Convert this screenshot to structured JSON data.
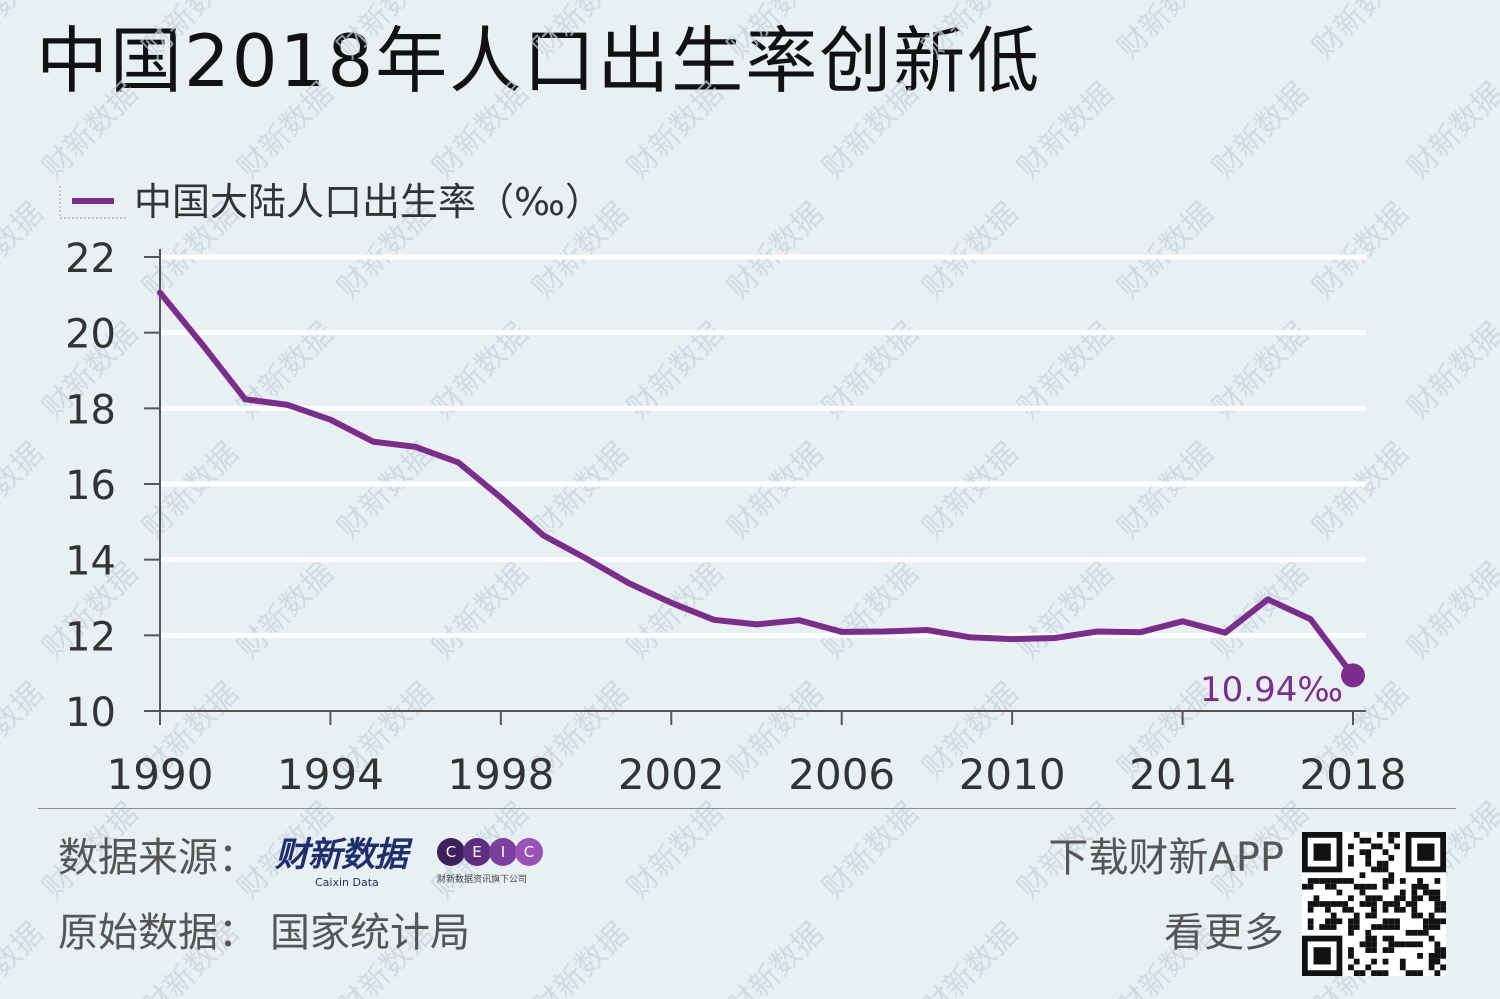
{
  "title": "中国2018年人口出生率创新低",
  "legend": {
    "label": "中国大陆人口出生率（‰）",
    "color": "#7b2d8b"
  },
  "colors": {
    "background": "#e8f0f4",
    "gridline": "#ffffff",
    "series": "#7b2d8b",
    "axis": "#555555",
    "watermark": "#c5d3dc"
  },
  "watermark": "财新数据",
  "chart_data": {
    "type": "line",
    "title": "中国2018年人口出生率创新低",
    "xlabel": "",
    "ylabel": "",
    "xlim": [
      1990,
      2018
    ],
    "ylim": [
      10,
      22
    ],
    "yticks": [
      10,
      12,
      14,
      16,
      18,
      20,
      22
    ],
    "xticks": [
      1990,
      1994,
      1998,
      2002,
      2006,
      2010,
      2014,
      2018
    ],
    "grid": "horizontal",
    "legend_position": "top-left",
    "series": [
      {
        "name": "中国大陆人口出生率（‰）",
        "x": [
          1990,
          1991,
          1992,
          1993,
          1994,
          1995,
          1996,
          1997,
          1998,
          1999,
          2000,
          2001,
          2002,
          2003,
          2004,
          2005,
          2006,
          2007,
          2008,
          2009,
          2010,
          2011,
          2012,
          2013,
          2014,
          2015,
          2016,
          2017,
          2018
        ],
        "values": [
          21.06,
          19.68,
          18.24,
          18.09,
          17.7,
          17.12,
          16.98,
          16.57,
          15.64,
          14.64,
          14.03,
          13.38,
          12.86,
          12.41,
          12.29,
          12.4,
          12.09,
          12.1,
          12.14,
          11.95,
          11.9,
          11.93,
          12.1,
          12.08,
          12.37,
          12.07,
          12.95,
          12.43,
          10.94
        ]
      }
    ],
    "annotations": [
      {
        "x": 2018,
        "y": 10.94,
        "text": "10.94‰"
      }
    ]
  },
  "footer": {
    "source_label": "数据来源：",
    "caixin_logo_cn": "财新数据",
    "caixin_logo_en": "Caixin Data",
    "ceic_letters": [
      "C",
      "E",
      "I",
      "C"
    ],
    "ceic_subtitle": "财新数据资讯旗下公司",
    "original_label": "原始数据：",
    "original_value": "国家统计局",
    "download_label": "下载财新APP",
    "more_label": "看更多"
  }
}
